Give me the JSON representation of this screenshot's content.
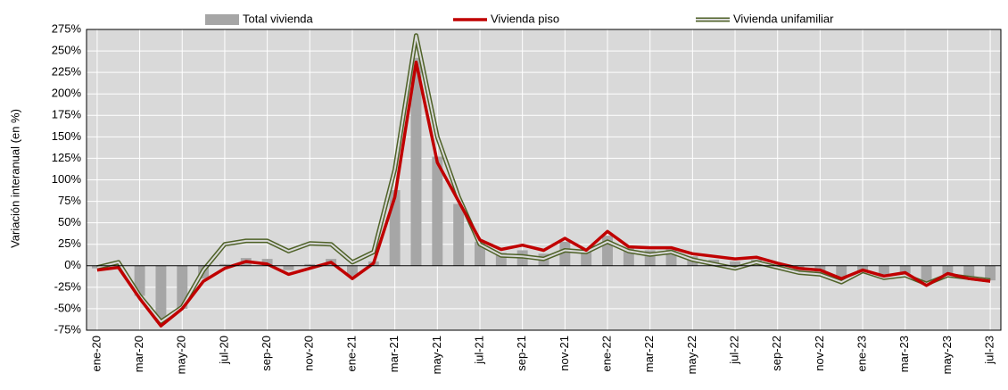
{
  "chart_data": {
    "type": "combo",
    "y_label": "Variación interanual (en %)",
    "categories": [
      "ene-20",
      null,
      "mar-20",
      null,
      "may-20",
      null,
      "jul-20",
      null,
      "sep-20",
      null,
      "nov-20",
      null,
      "ene-21",
      null,
      "mar-21",
      null,
      "may-21",
      null,
      "jul-21",
      null,
      "sep-21",
      null,
      "nov-21",
      null,
      "ene-22",
      null,
      "mar-22",
      null,
      "may-22",
      null,
      "jul-22",
      null,
      "sep-22",
      null,
      "nov-22",
      null,
      "ene-23",
      null,
      "mar-23",
      null,
      "may-23",
      null,
      "jul-23"
    ],
    "series": [
      {
        "name": "Total vivienda",
        "type": "bar",
        "color": "#a6a6a6",
        "values": [
          -3,
          0,
          -35,
          -66,
          -50,
          -15,
          2,
          9,
          8,
          -5,
          2,
          8,
          -12,
          5,
          88,
          242,
          127,
          72,
          28,
          15,
          18,
          14,
          28,
          17,
          35,
          20,
          18,
          19,
          11,
          7,
          5,
          7,
          1,
          -5,
          -7,
          -16,
          -6,
          -13,
          -9,
          -22,
          -10,
          -15,
          -17
        ]
      },
      {
        "name": "Vivienda piso",
        "type": "line",
        "color": "#c00000",
        "values": [
          -5,
          -2,
          -38,
          -70,
          -50,
          -18,
          -3,
          5,
          2,
          -10,
          -3,
          4,
          -15,
          3,
          80,
          237,
          120,
          75,
          30,
          19,
          24,
          18,
          32,
          18,
          40,
          22,
          21,
          21,
          14,
          11,
          8,
          10,
          3,
          -3,
          -5,
          -15,
          -5,
          -12,
          -8,
          -23,
          -9,
          -15,
          -18
        ]
      },
      {
        "name": "Vivienda unifamiliar",
        "type": "double-line",
        "color": "#4f6228",
        "values": [
          -2,
          4,
          -35,
          -65,
          -48,
          -5,
          25,
          29,
          29,
          17,
          26,
          25,
          4,
          16,
          112,
          268,
          150,
          80,
          25,
          12,
          11,
          8,
          18,
          16,
          28,
          17,
          13,
          16,
          7,
          2,
          -3,
          4,
          -2,
          -8,
          -10,
          -19,
          -6,
          -14,
          -11,
          -21,
          -11,
          -14,
          -17
        ]
      }
    ],
    "ylim": [
      -75,
      275
    ],
    "yticks": [
      {
        "value": -75,
        "label": "-75%"
      },
      {
        "value": -50,
        "label": "-50%"
      },
      {
        "value": -25,
        "label": "-25%"
      },
      {
        "value": 0,
        "label": "0%"
      },
      {
        "value": 25,
        "label": "25%"
      },
      {
        "value": 50,
        "label": "50%"
      },
      {
        "value": 75,
        "label": "75%"
      },
      {
        "value": 100,
        "label": "100%"
      },
      {
        "value": 125,
        "label": "125%"
      },
      {
        "value": 150,
        "label": "150%"
      },
      {
        "value": 175,
        "label": "175%"
      },
      {
        "value": 200,
        "label": "200%"
      },
      {
        "value": 225,
        "label": "225%"
      },
      {
        "value": 250,
        "label": "250%"
      },
      {
        "value": 275,
        "label": "275%"
      }
    ],
    "grid": true,
    "background": "#d9d9d9",
    "legend": "top"
  }
}
